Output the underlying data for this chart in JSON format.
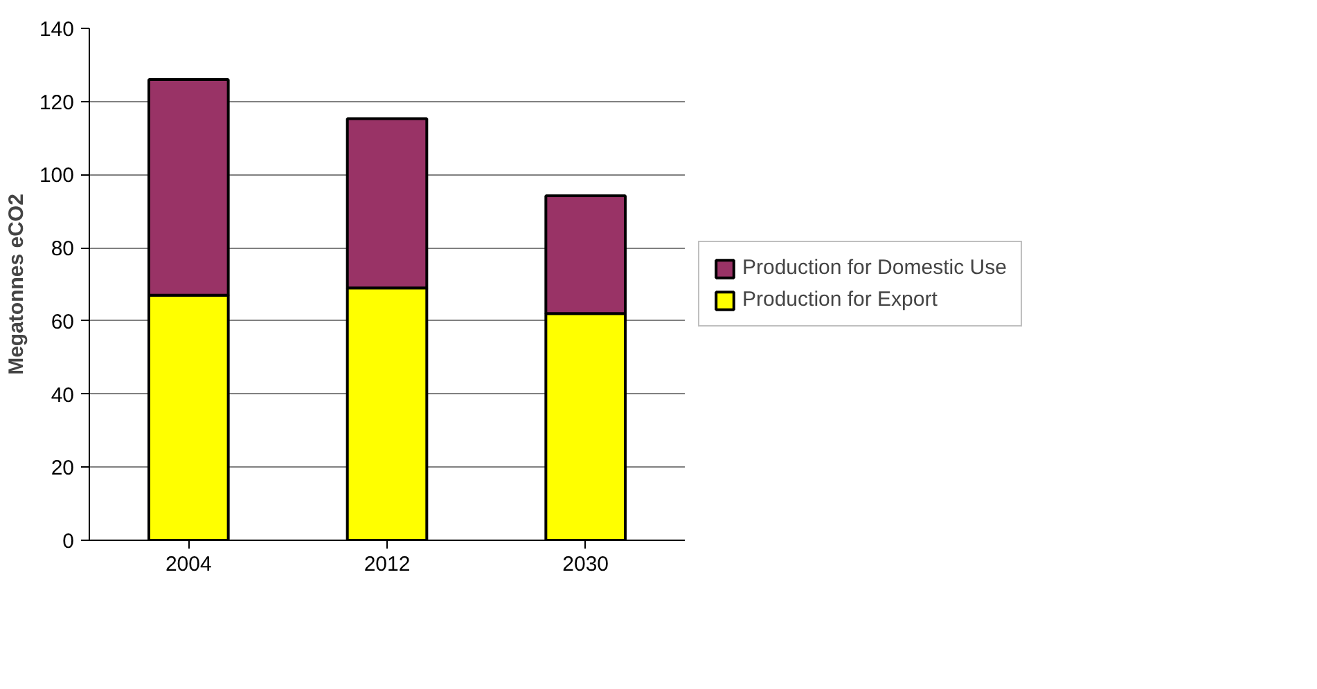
{
  "chart_data": {
    "type": "bar",
    "stacked": true,
    "ylabel": "Megatonnes eCO2",
    "categories": [
      "2004",
      "2012",
      "2030"
    ],
    "series": [
      {
        "name": "Production for Export",
        "color": "#ffff00",
        "values": [
          67,
          69,
          62
        ]
      },
      {
        "name": "Production for Domestic Use",
        "color": "#993366",
        "values": [
          59,
          46.3,
          32.2
        ]
      }
    ],
    "ylim": [
      0,
      140
    ],
    "yticks": [
      0,
      20,
      40,
      60,
      80,
      100,
      120,
      140
    ],
    "grid": "y",
    "legend": "right"
  }
}
